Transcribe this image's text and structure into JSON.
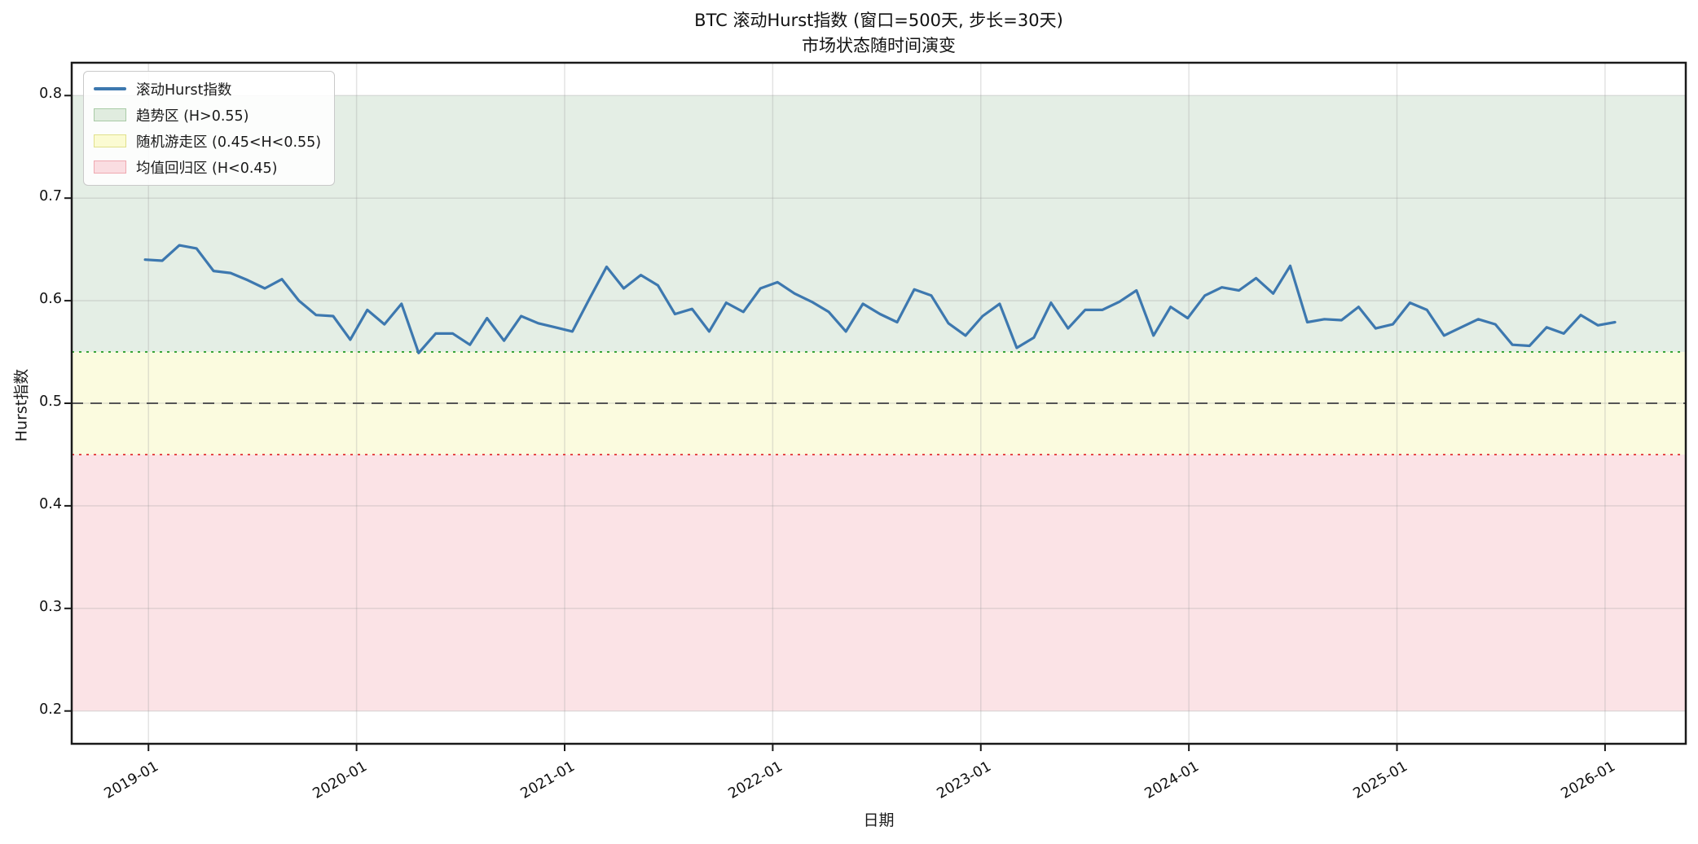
{
  "chart_data": {
    "type": "line",
    "title": "BTC 滚动Hurst指数 (窗口=500天, 步长=30天)",
    "subtitle": "市场状态随时间演变",
    "xlabel": "日期",
    "ylabel": "Hurst指数",
    "grid": true,
    "legend_position": "upper-left",
    "xlim_years": [
      2018.631,
      2026.388
    ],
    "ylim": [
      0.168,
      0.832
    ],
    "x_ticks": [
      {
        "year": 2019.0,
        "label": "2019-01"
      },
      {
        "year": 2020.0,
        "label": "2020-01"
      },
      {
        "year": 2021.0,
        "label": "2021-01"
      },
      {
        "year": 2022.0,
        "label": "2022-01"
      },
      {
        "year": 2023.0,
        "label": "2023-01"
      },
      {
        "year": 2024.0,
        "label": "2024-01"
      },
      {
        "year": 2025.0,
        "label": "2025-01"
      },
      {
        "year": 2026.0,
        "label": "2026-01"
      }
    ],
    "y_ticks": [
      {
        "value": 0.2,
        "label": "0.2"
      },
      {
        "value": 0.3,
        "label": "0.3"
      },
      {
        "value": 0.4,
        "label": "0.4"
      },
      {
        "value": 0.5,
        "label": "0.5"
      },
      {
        "value": 0.6,
        "label": "0.6"
      },
      {
        "value": 0.7,
        "label": "0.7"
      },
      {
        "value": 0.8,
        "label": "0.8"
      }
    ],
    "bands": [
      {
        "name": "trend-zone",
        "label": "趋势区 (H>0.55)",
        "from": 0.55,
        "to": 0.8,
        "color": "#e4eee5"
      },
      {
        "name": "random-walk-zone",
        "label": "随机游走区 (0.45<H<0.55)",
        "from": 0.45,
        "to": 0.55,
        "color": "#fbfbdf"
      },
      {
        "name": "mean-reversion-zone",
        "label": "均值回归区 (H<0.45)",
        "from": 0.2,
        "to": 0.45,
        "color": "#fbe3e6"
      }
    ],
    "hlines": [
      {
        "y": 0.55,
        "color": "#3aa43a",
        "dash": "3 6",
        "width": 2
      },
      {
        "y": 0.5,
        "color": "#555555",
        "dash": "14 9",
        "width": 2
      },
      {
        "y": 0.45,
        "color": "#e54747",
        "dash": "3 6",
        "width": 2
      }
    ],
    "series": [
      {
        "name": "滚动Hurst指数",
        "color": "#3d78af",
        "x_start_year": 2018.984,
        "x_step_days": 30,
        "values": [
          0.64,
          0.639,
          0.654,
          0.651,
          0.629,
          0.627,
          0.62,
          0.612,
          0.621,
          0.6,
          0.586,
          0.585,
          0.562,
          0.591,
          0.577,
          0.597,
          0.549,
          0.568,
          0.568,
          0.557,
          0.583,
          0.561,
          0.585,
          0.578,
          0.574,
          0.57,
          0.602,
          0.633,
          0.612,
          0.625,
          0.615,
          0.587,
          0.592,
          0.57,
          0.598,
          0.589,
          0.612,
          0.618,
          0.607,
          0.599,
          0.589,
          0.57,
          0.597,
          0.587,
          0.579,
          0.611,
          0.605,
          0.578,
          0.566,
          0.585,
          0.597,
          0.554,
          0.564,
          0.598,
          0.573,
          0.591,
          0.591,
          0.599,
          0.61,
          0.566,
          0.594,
          0.583,
          0.605,
          0.613,
          0.61,
          0.622,
          0.607,
          0.634,
          0.579,
          0.582,
          0.581,
          0.594,
          0.573,
          0.577,
          0.598,
          0.591,
          0.566,
          0.574,
          0.582,
          0.577,
          0.557,
          0.556,
          0.574,
          0.568,
          0.586,
          0.576,
          0.579
        ]
      }
    ],
    "legend": [
      {
        "type": "line",
        "color": "#3d78af",
        "label": "滚动Hurst指数"
      },
      {
        "type": "patch",
        "fill": "#e0ecdf",
        "edge": "#a9cba6",
        "label": "趋势区 (H>0.55)"
      },
      {
        "type": "patch",
        "fill": "#fbfbd2",
        "edge": "#e0e08c",
        "label": "随机游走区 (0.45<H<0.55)"
      },
      {
        "type": "patch",
        "fill": "#fadde1",
        "edge": "#efa9b0",
        "label": "均值回归区 (H<0.45)"
      }
    ]
  },
  "colors": {
    "spine": "#1a1a1a",
    "grid": "#9a9a9a",
    "background": "#ffffff"
  }
}
